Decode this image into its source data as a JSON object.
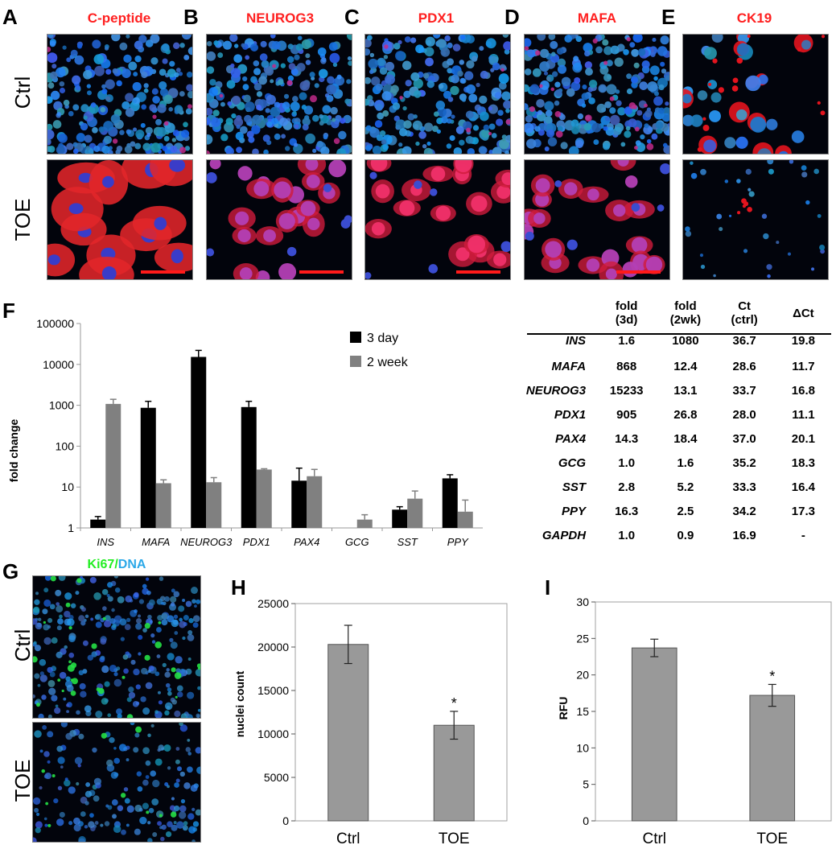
{
  "top_panels": {
    "row_labels": [
      "Ctrl",
      "TOE"
    ],
    "columns": [
      {
        "letter": "A",
        "stain": "C-peptide"
      },
      {
        "letter": "B",
        "stain": "NEUROG3"
      },
      {
        "letter": "C",
        "stain": "PDX1"
      },
      {
        "letter": "D",
        "stain": "MAFA"
      },
      {
        "letter": "E",
        "stain": "CK19"
      }
    ]
  },
  "panel_f": {
    "letter": "F",
    "table": {
      "headers": [
        [
          "fold",
          "(3d)"
        ],
        [
          "fold",
          "(2wk)"
        ],
        [
          "Ct",
          "(ctrl)"
        ],
        [
          "ΔCt",
          ""
        ]
      ],
      "rows": [
        {
          "gene": "INS",
          "cells": [
            "1.6",
            "1080",
            "36.7",
            "19.8"
          ]
        },
        {
          "gene": "MAFA",
          "cells": [
            "868",
            "12.4",
            "28.6",
            "11.7"
          ]
        },
        {
          "gene": "NEUROG3",
          "cells": [
            "15233",
            "13.1",
            "33.7",
            "16.8"
          ]
        },
        {
          "gene": "PDX1",
          "cells": [
            "905",
            "26.8",
            "28.0",
            "11.1"
          ]
        },
        {
          "gene": "PAX4",
          "cells": [
            "14.3",
            "18.4",
            "37.0",
            "20.1"
          ]
        },
        {
          "gene": "GCG",
          "cells": [
            "1.0",
            "1.6",
            "35.2",
            "18.3"
          ]
        },
        {
          "gene": "SST",
          "cells": [
            "2.8",
            "5.2",
            "33.3",
            "16.4"
          ]
        },
        {
          "gene": "PPY",
          "cells": [
            "16.3",
            "2.5",
            "34.2",
            "17.3"
          ]
        },
        {
          "gene": "GAPDH",
          "cells": [
            "1.0",
            "0.9",
            "16.9",
            "-"
          ]
        }
      ]
    }
  },
  "panel_g": {
    "letter": "G",
    "title_parts": [
      "Ki67",
      "/",
      "DNA"
    ],
    "row_labels": [
      "Ctrl",
      "TOE"
    ]
  },
  "panel_h": {
    "letter": "H"
  },
  "panel_i": {
    "letter": "I"
  },
  "chart_data": [
    {
      "type": "bar",
      "panel": "F",
      "ylabel": "fold change",
      "yscale": "log",
      "ylim": [
        1,
        100000
      ],
      "yticks": [
        "1",
        "10",
        "100",
        "1000",
        "10000",
        "100000"
      ],
      "legend_position": "top-right",
      "categories": [
        "INS",
        "MAFA",
        "NEUROG3",
        "PDX1",
        "PAX4",
        "GCG",
        "SST",
        "PPY"
      ],
      "series": [
        {
          "name": "3 day",
          "color": "#000000",
          "values": [
            1.6,
            868,
            15233,
            905,
            14.3,
            1.0,
            2.8,
            16.3
          ],
          "err_upper": [
            1.9,
            1250,
            22000,
            1250,
            29,
            1.0,
            3.3,
            20
          ]
        },
        {
          "name": "2 week",
          "color": "#808080",
          "values": [
            1080,
            12.4,
            13.1,
            26.8,
            18.4,
            1.6,
            5.2,
            2.5
          ],
          "err_upper": [
            1400,
            15,
            17,
            28,
            27,
            2.1,
            8,
            4.8
          ]
        }
      ]
    },
    {
      "type": "bar",
      "panel": "H",
      "ylabel": "nuclei count",
      "ylim": [
        0,
        25000
      ],
      "yticks": [
        "0",
        "5000",
        "10000",
        "15000",
        "20000",
        "25000"
      ],
      "categories": [
        "Ctrl",
        "TOE"
      ],
      "values": [
        20300,
        11000
      ],
      "errors": [
        2200,
        1600
      ],
      "significance": [
        "",
        "*"
      ],
      "color": "#999999"
    },
    {
      "type": "bar",
      "panel": "I",
      "ylabel": "RFU",
      "ylim": [
        0,
        30
      ],
      "yticks": [
        "0",
        "5",
        "10",
        "15",
        "20",
        "25",
        "30"
      ],
      "categories": [
        "Ctrl",
        "TOE"
      ],
      "values": [
        23.7,
        17.2
      ],
      "errors": [
        1.2,
        1.5
      ],
      "significance": [
        "",
        "*"
      ],
      "color": "#999999"
    }
  ]
}
